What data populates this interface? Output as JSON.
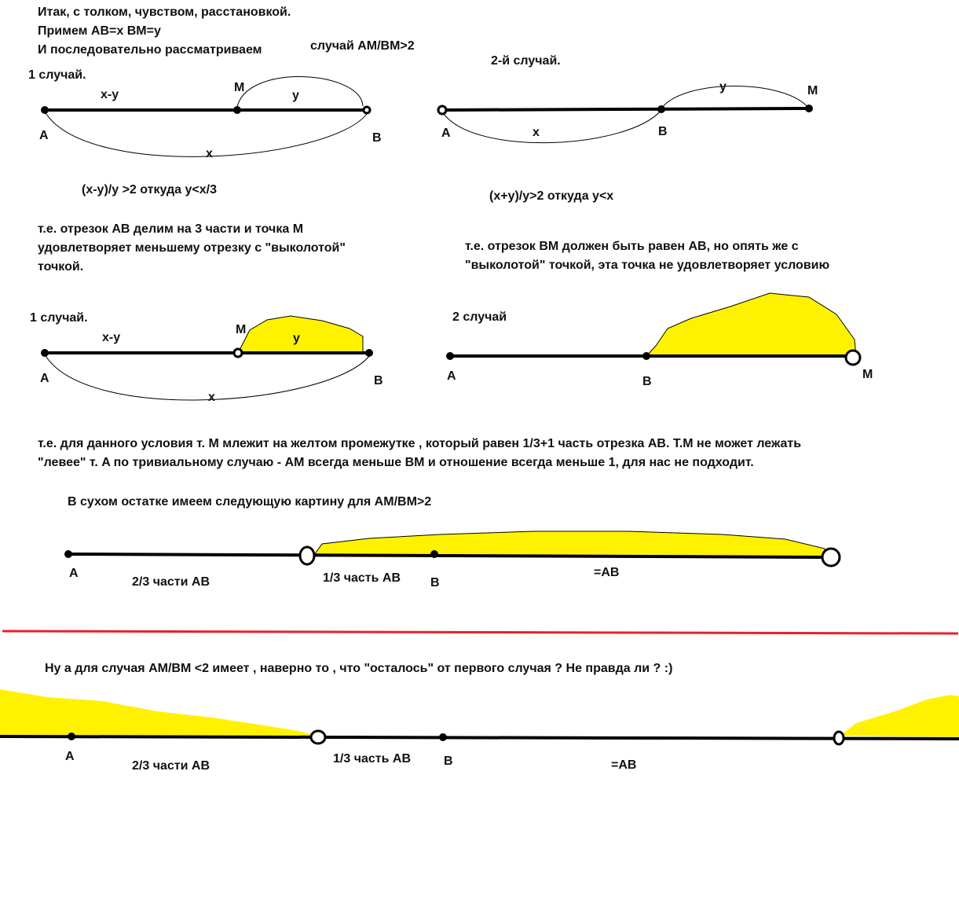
{
  "colors": {
    "highlight": "#fff200",
    "separator": "#e8202a",
    "ink": "#000000"
  },
  "intro": {
    "line1": "Итак, с толком, чувством, расстановкой.",
    "line2": "Примем AB=x     BM=y",
    "line3": "И последовательно рассматриваем",
    "case_label": "случай AM/BM>2"
  },
  "case1": {
    "title": "1 случай.",
    "labels": {
      "A": "A",
      "M": "M",
      "B": "B",
      "xy": "x-y",
      "y": "y",
      "x": "x"
    },
    "formula": "(x-y)/y >2       откуда  y<x/3",
    "explanation": [
      "т.е. отрезок AB делим на 3 части и точка M",
      "удовлетворяет меньшему отрезку с \"выколотой\"",
      "точкой."
    ]
  },
  "case2": {
    "title": "2-й случай.",
    "labels": {
      "A": "A",
      "B": "B",
      "M": "M",
      "x": "x",
      "y": "y"
    },
    "formula": "(x+y)/y>2    откуда y<x",
    "explanation": [
      "т.е. отрезок BM должен быть равен AB, но опять же с",
      "\"выколотой\" точкой, эта точка не удовлетворяет условию"
    ]
  },
  "case1_shaded": {
    "title": "1 случай.",
    "labels": {
      "A": "A",
      "M": "M",
      "B": "B",
      "xy": "x-y",
      "y": "y",
      "x": "x"
    }
  },
  "case2_shaded": {
    "title": "2 случай",
    "labels": {
      "A": "A",
      "B": "B",
      "M": "M"
    }
  },
  "conclusion": [
    "т.е. для данного условия т. M млежит на желтом промежутке , который равен 1/3+1 часть отрезка AB.  T.M не может лежать",
    "\"левее\" т. A по тривиальному случаю - AM всегда меньше BM и отношение всегда меньше 1, для нас не подходит."
  ],
  "summary": {
    "title": "В сухом остатке имеем следующую картину для AM/BM>2",
    "labels": {
      "A": "A",
      "B": "B",
      "two_thirds": "2/3 части AB",
      "one_third": "1/3 часть AB",
      "eq": "=AB"
    }
  },
  "second": {
    "title": "Ну а для случая AM/BM <2  имеет , наверно то , что \"осталось\" от первого случая ?    Не правда ли ?      :)",
    "labels": {
      "A": "A",
      "B": "B",
      "two_thirds": "2/3 части AB",
      "one_third": "1/3 часть AB",
      "eq": "=AB"
    }
  }
}
